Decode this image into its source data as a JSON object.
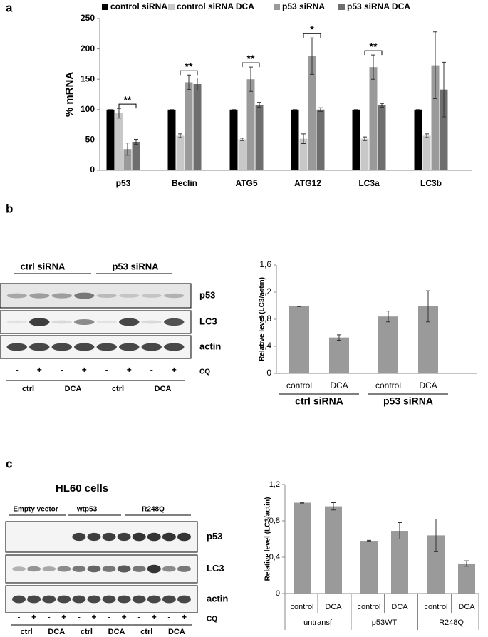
{
  "panel_labels": [
    "a",
    "b",
    "c"
  ],
  "chart_data": [
    {
      "type": "bar",
      "y_label": "% mRNA",
      "categories": [
        "p53",
        "Beclin",
        "ATG5",
        "ATG12",
        "LC3a",
        "LC3b"
      ],
      "series": [
        {
          "name": "control siRNA",
          "color": "#000000",
          "values": [
            100,
            100,
            100,
            100,
            100,
            100
          ],
          "errors": [
            0,
            0,
            0,
            0,
            0,
            0
          ]
        },
        {
          "name": "control siRNA DCA",
          "color": "#c8c8c8",
          "values": [
            94,
            57,
            51,
            52,
            52,
            57
          ],
          "errors": [
            8,
            3,
            2,
            8,
            3,
            3
          ]
        },
        {
          "name": "p53 siRNA",
          "color": "#9a9a9a",
          "values": [
            35,
            145,
            150,
            188,
            170,
            173
          ],
          "errors": [
            10,
            12,
            20,
            30,
            20,
            55
          ]
        },
        {
          "name": "p53 siRNA DCA",
          "color": "#6e6e6e",
          "values": [
            47,
            142,
            108,
            100,
            107,
            133
          ],
          "errors": [
            4,
            10,
            4,
            3,
            3,
            45
          ]
        }
      ],
      "annotations": [
        {
          "text": "**",
          "category": "p53"
        },
        {
          "text": "**",
          "category": "Beclin"
        },
        {
          "text": "**",
          "category": "ATG5"
        },
        {
          "text": "*",
          "category": "ATG12"
        },
        {
          "text": "**",
          "category": "LC3a"
        }
      ],
      "ylim": [
        0,
        250
      ],
      "yticks": [
        0,
        50,
        100,
        150,
        200,
        250
      ],
      "grid": false,
      "legend": "top"
    },
    {
      "type": "bar",
      "y_label": "Relative level (LC3/actin)",
      "categories": [
        "control",
        "DCA",
        "control",
        "DCA"
      ],
      "group_labels": [
        "ctrl siRNA",
        "p53 siRNA"
      ],
      "values": [
        0.99,
        0.53,
        0.84,
        0.99
      ],
      "errors": [
        0.005,
        0.04,
        0.08,
        0.23
      ],
      "color": "#9a9a9a",
      "ylim": [
        0,
        1.6
      ],
      "yticks": [
        0,
        {
          "value": 0.4,
          "label": "0,4"
        },
        {
          "value": 0.8,
          "label": "0,8"
        },
        {
          "value": 1.2,
          "label": "1,2"
        },
        {
          "value": 1.6,
          "label": "1,6"
        }
      ],
      "grid": false
    },
    {
      "type": "bar",
      "y_label": "Relative level (LC3/actin)",
      "categories": [
        "control",
        "DCA",
        "control",
        "DCA",
        "control",
        "DCA"
      ],
      "group_labels": [
        "untransf",
        "p53WT",
        "R248Q"
      ],
      "values": [
        1.0,
        0.96,
        0.58,
        0.69,
        0.64,
        0.33
      ],
      "errors": [
        0.005,
        0.04,
        0.005,
        0.09,
        0.18,
        0.03
      ],
      "color": "#9a9a9a",
      "ylim": [
        0,
        1.2
      ],
      "yticks": [
        0,
        {
          "value": 0.4,
          "label": "0,4"
        },
        {
          "value": 0.8,
          "label": "0,8"
        },
        {
          "value": 1.2,
          "label": "1,2"
        }
      ],
      "grid": false
    }
  ],
  "blots": [
    {
      "title": null,
      "groups": [
        "ctrl siRNA",
        "p53 siRNA"
      ],
      "rows": [
        "p53",
        "LC3",
        "actin"
      ],
      "treatment": "CQ",
      "signs": [
        "-",
        "+",
        "-",
        "+",
        "-",
        "+",
        "-",
        "+"
      ],
      "conditions": [
        "ctrl",
        "DCA",
        "ctrl",
        "DCA"
      ]
    },
    {
      "title": "HL60 cells",
      "groups": [
        "Empty vector",
        "wtp53",
        "R248Q"
      ],
      "rows": [
        "p53",
        "LC3",
        "actin"
      ],
      "treatment": "CQ",
      "signs": [
        "-",
        "+",
        "-",
        "+",
        "-",
        "+",
        "-",
        "+",
        "-",
        "+",
        "-",
        "+"
      ],
      "conditions": [
        "ctrl",
        "DCA",
        "ctrl",
        "DCA",
        "ctrl",
        "DCA"
      ]
    }
  ]
}
